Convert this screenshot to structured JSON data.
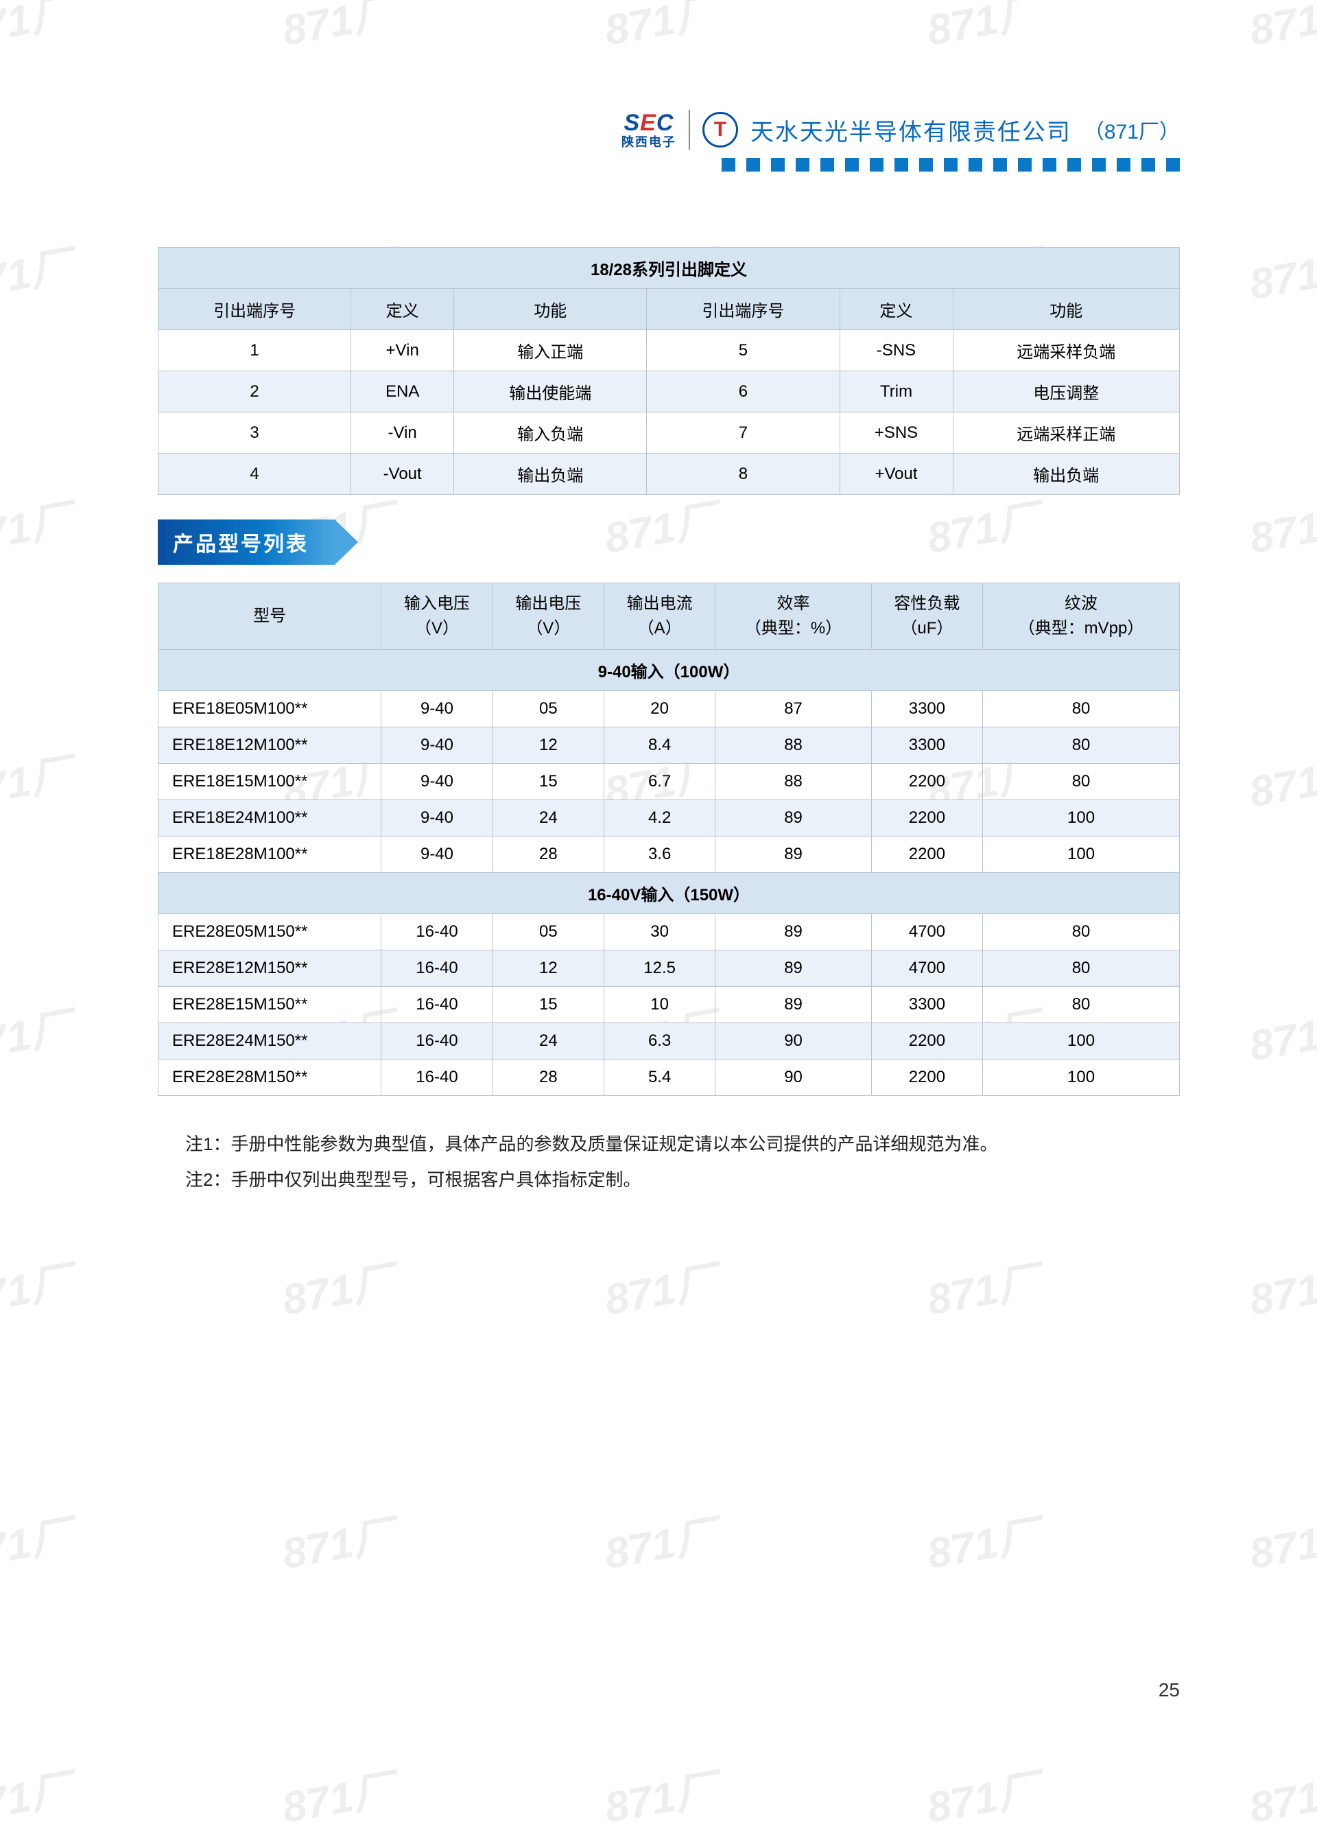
{
  "watermark_text": "871厂",
  "header": {
    "sec_left": "S",
    "sec_mid": "E",
    "sec_right": "C",
    "sec_sub": "陕西电子",
    "circle": "T",
    "company": "天水天光半导体有限责任公司",
    "company_suffix": "（871厂）"
  },
  "dot_count": 19,
  "pin_table": {
    "title": "18/28系列引出脚定义",
    "headers": [
      "引出端序号",
      "定义",
      "功能",
      "引出端序号",
      "定义",
      "功能"
    ],
    "rows": [
      [
        "1",
        "+Vin",
        "输入正端",
        "5",
        "-SNS",
        "远端采样负端"
      ],
      [
        "2",
        "ENA",
        "输出使能端",
        "6",
        "Trim",
        "电压调整"
      ],
      [
        "3",
        "-Vin",
        "输入负端",
        "7",
        "+SNS",
        "远端采样正端"
      ],
      [
        "4",
        "-Vout",
        "输出负端",
        "8",
        "+Vout",
        "输出负端"
      ]
    ]
  },
  "section_title": "产品型号列表",
  "prod_table": {
    "headers": [
      "型号",
      "输入电压\n（V）",
      "输出电压\n（V）",
      "输出电流\n（A）",
      "效率\n（典型：%）",
      "容性负载\n（uF）",
      "纹波\n（典型：mVpp）"
    ],
    "section1": "9-40输入（100W）",
    "rows1": [
      [
        "ERE18E05M100**",
        "9-40",
        "05",
        "20",
        "87",
        "3300",
        "80"
      ],
      [
        "ERE18E12M100**",
        "9-40",
        "12",
        "8.4",
        "88",
        "3300",
        "80"
      ],
      [
        "ERE18E15M100**",
        "9-40",
        "15",
        "6.7",
        "88",
        "2200",
        "80"
      ],
      [
        "ERE18E24M100**",
        "9-40",
        "24",
        "4.2",
        "89",
        "2200",
        "100"
      ],
      [
        "ERE18E28M100**",
        "9-40",
        "28",
        "3.6",
        "89",
        "2200",
        "100"
      ]
    ],
    "section2": "16-40V输入（150W）",
    "rows2": [
      [
        "ERE28E05M150**",
        "16-40",
        "05",
        "30",
        "89",
        "4700",
        "80"
      ],
      [
        "ERE28E12M150**",
        "16-40",
        "12",
        "12.5",
        "89",
        "4700",
        "80"
      ],
      [
        "ERE28E15M150**",
        "16-40",
        "15",
        "10",
        "89",
        "3300",
        "80"
      ],
      [
        "ERE28E24M150**",
        "16-40",
        "24",
        "6.3",
        "90",
        "2200",
        "100"
      ],
      [
        "ERE28E28M150**",
        "16-40",
        "28",
        "5.4",
        "90",
        "2200",
        "100"
      ]
    ]
  },
  "notes": [
    "注1：手册中性能参数为典型值，具体产品的参数及质量保证规定请以本公司提供的产品详细规范为准。",
    "注2：手册中仅列出典型型号，可根据客户具体指标定制。"
  ],
  "page_number": "25",
  "colors": {
    "brand_blue": "#0a4ea0",
    "light_blue": "#0a78c8",
    "header_bg": "#d6e4f2",
    "alt_bg": "#eaf1f8",
    "border": "#b8c4d0"
  }
}
